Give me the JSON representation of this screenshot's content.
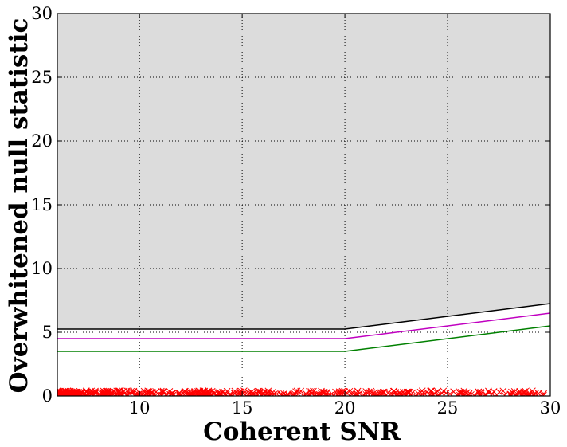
{
  "chart_data": {
    "type": "line",
    "title": "",
    "xlabel": "Coherent SNR",
    "ylabel": "Overwhitened null statistic",
    "xlim": [
      6,
      30
    ],
    "ylim": [
      0,
      30
    ],
    "xticks": [
      "10",
      "15",
      "20",
      "25",
      "30"
    ],
    "yticks": [
      "0",
      "5",
      "10",
      "15",
      "20",
      "25",
      "30"
    ],
    "grid": true,
    "veto_region": {
      "fill": "#dcdcdc",
      "boundary": {
        "x": [
          6,
          20,
          30
        ],
        "y": [
          5.25,
          5.25,
          7.25
        ]
      },
      "color": "#000000"
    },
    "series": [
      {
        "x": [
          6,
          20,
          30
        ],
        "y": [
          4.5,
          4.5,
          6.5
        ],
        "color": "#c000c0"
      },
      {
        "x": [
          6,
          20,
          30
        ],
        "y": [
          3.5,
          3.5,
          5.5
        ],
        "color": "#008000"
      }
    ],
    "points": {
      "marker": "x",
      "color": "#ff0000",
      "x_range": [
        6,
        30
      ],
      "y_range": [
        0,
        0.4
      ],
      "density_note_x": [
        6,
        20,
        30
      ]
    }
  }
}
